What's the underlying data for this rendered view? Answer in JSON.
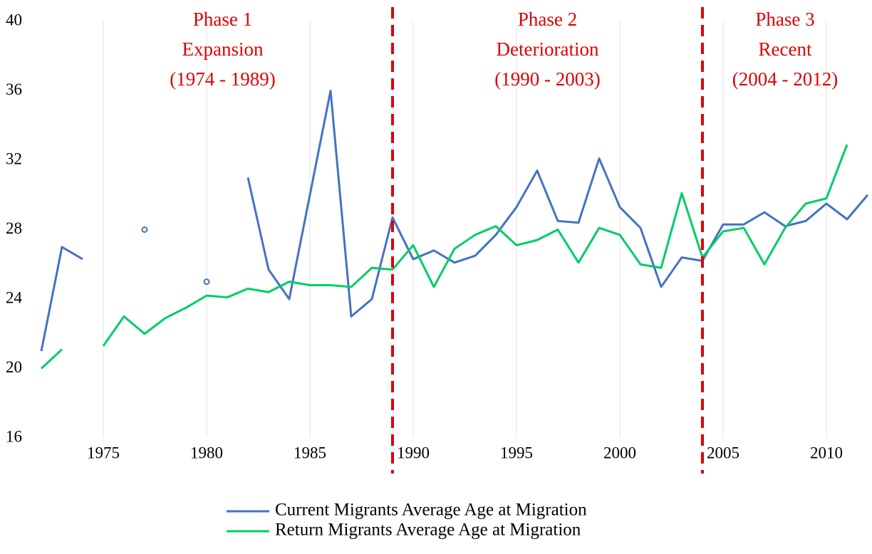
{
  "chart_data": {
    "type": "line",
    "x": [
      1972,
      1973,
      1974,
      1975,
      1976,
      1977,
      1978,
      1979,
      1980,
      1981,
      1982,
      1983,
      1984,
      1985,
      1986,
      1987,
      1988,
      1989,
      1990,
      1991,
      1992,
      1993,
      1994,
      1995,
      1996,
      1997,
      1998,
      1999,
      2000,
      2001,
      2002,
      2003,
      2004,
      2005,
      2006,
      2007,
      2008,
      2009,
      2010,
      2011,
      2012
    ],
    "series": [
      {
        "name": "Current Migrants Average Age at Migration",
        "color": "#4472c4",
        "values": [
          21.0,
          27.0,
          26.3,
          null,
          null,
          28.0,
          null,
          null,
          25.0,
          null,
          31.0,
          25.7,
          24.0,
          30.0,
          36.0,
          23.0,
          24.0,
          28.7,
          26.3,
          26.8,
          26.1,
          26.5,
          27.7,
          29.3,
          31.4,
          28.5,
          28.4,
          32.1,
          29.3,
          28.1,
          24.7,
          26.4,
          26.2,
          28.3,
          28.3,
          29.0,
          28.2,
          28.5,
          29.5,
          28.6,
          30.0
        ]
      },
      {
        "name": "Return Migrants Average Age at Migration",
        "color": "#00cc66",
        "values": [
          20.0,
          21.1,
          null,
          21.3,
          23.0,
          22.0,
          22.9,
          23.5,
          24.2,
          24.1,
          24.6,
          24.4,
          25.0,
          24.8,
          24.8,
          24.7,
          25.8,
          25.7,
          27.1,
          24.7,
          26.9,
          27.7,
          28.2,
          27.1,
          27.4,
          28.0,
          26.1,
          28.1,
          27.7,
          26.0,
          25.8,
          30.1,
          26.4,
          27.9,
          28.1,
          26.0,
          28.1,
          29.5,
          29.8,
          32.9,
          null
        ]
      }
    ],
    "xlim": [
      1972,
      2012
    ],
    "xticks": [
      1975,
      1980,
      1985,
      1990,
      1995,
      2000,
      2005,
      2010
    ],
    "ylim": [
      16,
      40
    ],
    "yticks": [
      16,
      20,
      24,
      28,
      32,
      36,
      40
    ],
    "grid": "x",
    "phase_lines": [
      1989,
      2004
    ],
    "phase_line_color": "#e00000",
    "phases": [
      {
        "name": "Phase 1",
        "label": "Expansion",
        "period": "(1974 - 1989)"
      },
      {
        "name": "Phase 2",
        "label": "Deterioration",
        "period": "(1990 - 2003)"
      },
      {
        "name": "Phase 3",
        "label": "Recent",
        "period": "(2004 - 2012)"
      }
    ],
    "legend": "bottom"
  }
}
